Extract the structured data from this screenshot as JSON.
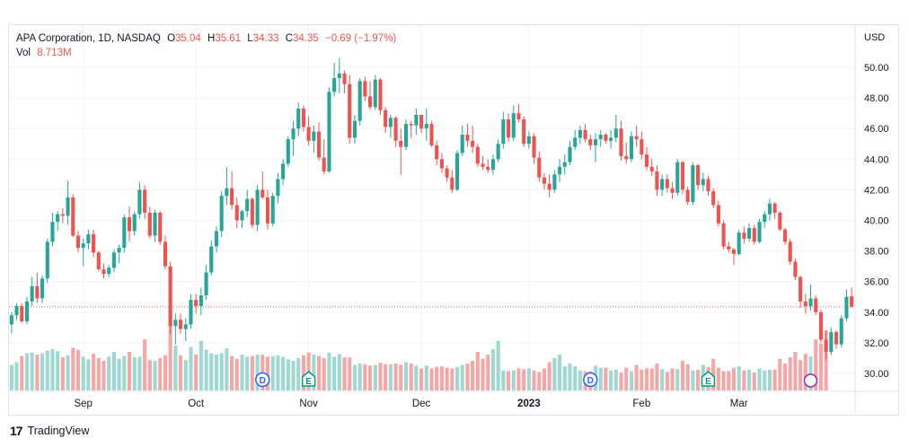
{
  "legend": {
    "symbol": "APA Corporation, 1D, NASDAQ",
    "o_label": "O",
    "o_value": "35.04",
    "h_label": "H",
    "h_value": "35.61",
    "l_label": "L",
    "l_value": "34.33",
    "c_label": "C",
    "c_value": "34.35",
    "change": "−0.69 (−1.97%)",
    "vol_label": "Vol",
    "vol_value": "8.713M"
  },
  "footer": {
    "logo_text": "17",
    "brand": "TradingView"
  },
  "colors": {
    "up": "#26a69a",
    "down": "#ef5350",
    "vol_up": "#9fd7d1",
    "vol_down": "#f3a7a6",
    "grid": "#f0f3fa",
    "last_price_line": "#ef5350"
  },
  "chart_data": {
    "type": "candlestick",
    "currency": "USD",
    "ylim": [
      29.2,
      51.6
    ],
    "y_ticks": [
      "30.00",
      "32.00",
      "34.00",
      "36.00",
      "38.00",
      "40.00",
      "42.00",
      "44.00",
      "46.00",
      "48.00",
      "50.00"
    ],
    "y_tick_values": [
      30,
      32,
      34,
      36,
      38,
      40,
      42,
      44,
      46,
      48,
      50
    ],
    "x_ticks": [
      {
        "label": "Sep",
        "index": 14,
        "bold": false
      },
      {
        "label": "Oct",
        "index": 36,
        "bold": false
      },
      {
        "label": "Nov",
        "index": 58,
        "bold": false
      },
      {
        "label": "Dec",
        "index": 80,
        "bold": false
      },
      {
        "label": "2023",
        "index": 101,
        "bold": true
      },
      {
        "label": "Feb",
        "index": 123,
        "bold": false
      },
      {
        "label": "Mar",
        "index": 142,
        "bold": false
      }
    ],
    "last_price": 34.35,
    "events": [
      {
        "type": "D",
        "index": 49
      },
      {
        "type": "E",
        "index": 58
      },
      {
        "type": "D",
        "index": 113
      },
      {
        "type": "E",
        "index": 136
      },
      {
        "type": "S",
        "index": 156
      }
    ],
    "ohlc": [
      [
        33.2,
        34.0,
        32.6,
        33.8
      ],
      [
        33.8,
        34.6,
        33.5,
        34.4
      ],
      [
        34.4,
        34.6,
        33.3,
        33.4
      ],
      [
        33.4,
        35.0,
        33.2,
        34.7
      ],
      [
        34.7,
        36.3,
        34.4,
        35.7
      ],
      [
        35.7,
        36.6,
        34.6,
        34.9
      ],
      [
        34.9,
        36.4,
        34.6,
        36.2
      ],
      [
        36.2,
        38.8,
        35.9,
        38.6
      ],
      [
        38.6,
        40.5,
        38.3,
        39.9
      ],
      [
        39.9,
        40.6,
        39.3,
        40.4
      ],
      [
        40.4,
        40.8,
        39.8,
        40.3
      ],
      [
        40.3,
        42.6,
        39.7,
        41.5
      ],
      [
        41.5,
        41.7,
        38.9,
        39.0
      ],
      [
        39.0,
        39.3,
        37.9,
        38.2
      ],
      [
        38.2,
        38.8,
        37.0,
        38.5
      ],
      [
        38.5,
        39.4,
        38.1,
        39.1
      ],
      [
        39.1,
        39.4,
        37.6,
        37.9
      ],
      [
        37.9,
        38.0,
        36.7,
        36.8
      ],
      [
        36.8,
        37.2,
        36.2,
        36.5
      ],
      [
        36.5,
        37.1,
        36.3,
        36.9
      ],
      [
        36.9,
        38.1,
        36.6,
        37.9
      ],
      [
        37.9,
        38.4,
        37.2,
        38.2
      ],
      [
        38.2,
        40.4,
        37.9,
        40.2
      ],
      [
        40.2,
        40.9,
        38.6,
        39.3
      ],
      [
        39.3,
        40.6,
        39.0,
        40.4
      ],
      [
        40.4,
        42.5,
        40.1,
        42.0
      ],
      [
        42.0,
        42.3,
        40.1,
        40.5
      ],
      [
        40.5,
        40.9,
        38.8,
        39.0
      ],
      [
        39.0,
        40.7,
        38.6,
        40.5
      ],
      [
        40.5,
        40.6,
        38.4,
        38.6
      ],
      [
        38.6,
        39.0,
        36.8,
        37.0
      ],
      [
        37.0,
        37.3,
        32.6,
        33.1
      ],
      [
        33.1,
        33.9,
        31.9,
        33.5
      ],
      [
        33.5,
        33.9,
        32.6,
        32.9
      ],
      [
        32.9,
        33.6,
        32.1,
        33.2
      ],
      [
        33.2,
        35.2,
        32.9,
        34.8
      ],
      [
        34.8,
        35.2,
        33.9,
        34.4
      ],
      [
        34.4,
        35.6,
        33.8,
        35.1
      ],
      [
        35.1,
        37.1,
        34.8,
        36.6
      ],
      [
        36.6,
        38.7,
        36.4,
        38.3
      ],
      [
        38.3,
        39.6,
        37.9,
        39.3
      ],
      [
        39.3,
        41.9,
        38.9,
        41.6
      ],
      [
        41.6,
        43.5,
        41.0,
        42.1
      ],
      [
        42.1,
        43.2,
        40.7,
        41.0
      ],
      [
        41.0,
        41.5,
        39.5,
        40.0
      ],
      [
        40.0,
        40.7,
        39.5,
        40.6
      ],
      [
        40.6,
        42.0,
        40.2,
        41.4
      ],
      [
        41.4,
        41.5,
        39.5,
        39.7
      ],
      [
        39.7,
        42.3,
        39.3,
        42.0
      ],
      [
        42.0,
        43.2,
        41.4,
        41.5
      ],
      [
        41.5,
        42.0,
        39.4,
        39.8
      ],
      [
        39.8,
        41.8,
        39.6,
        41.6
      ],
      [
        41.6,
        43.1,
        41.1,
        42.7
      ],
      [
        42.7,
        44.0,
        42.3,
        43.7
      ],
      [
        43.7,
        45.5,
        43.5,
        45.3
      ],
      [
        45.3,
        46.5,
        44.2,
        46.0
      ],
      [
        46.0,
        47.7,
        45.5,
        47.3
      ],
      [
        47.3,
        47.5,
        45.8,
        46.1
      ],
      [
        46.1,
        46.8,
        44.9,
        45.2
      ],
      [
        45.2,
        46.2,
        44.4,
        45.8
      ],
      [
        45.8,
        46.4,
        43.9,
        44.1
      ],
      [
        44.1,
        45.3,
        43.0,
        43.2
      ],
      [
        43.2,
        48.7,
        43.1,
        48.4
      ],
      [
        48.4,
        50.3,
        48.1,
        49.3
      ],
      [
        49.3,
        50.6,
        48.3,
        49.6
      ],
      [
        49.6,
        49.8,
        48.3,
        48.9
      ],
      [
        48.9,
        49.5,
        45.0,
        45.4
      ],
      [
        45.4,
        46.9,
        45.0,
        46.5
      ],
      [
        46.5,
        49.3,
        46.2,
        49.1
      ],
      [
        49.1,
        49.4,
        47.8,
        48.1
      ],
      [
        48.1,
        49.1,
        47.2,
        47.4
      ],
      [
        47.4,
        49.5,
        47.2,
        49.2
      ],
      [
        49.2,
        49.3,
        46.9,
        47.2
      ],
      [
        47.2,
        47.4,
        45.7,
        46.1
      ],
      [
        46.1,
        46.9,
        45.4,
        46.7
      ],
      [
        46.7,
        46.8,
        44.8,
        45.2
      ],
      [
        45.2,
        46.0,
        43.0,
        44.8
      ],
      [
        44.8,
        46.6,
        44.6,
        46.3
      ],
      [
        46.3,
        46.5,
        45.4,
        46.2
      ],
      [
        46.2,
        47.3,
        45.6,
        46.9
      ],
      [
        46.9,
        46.9,
        45.7,
        46.0
      ],
      [
        46.0,
        47.3,
        45.2,
        46.3
      ],
      [
        46.3,
        46.5,
        44.8,
        44.9
      ],
      [
        44.9,
        45.2,
        43.6,
        44.0
      ],
      [
        44.0,
        44.4,
        43.1,
        43.4
      ],
      [
        43.4,
        43.6,
        42.5,
        42.8
      ],
      [
        42.8,
        43.3,
        41.8,
        42.0
      ],
      [
        42.0,
        44.6,
        41.9,
        44.4
      ],
      [
        44.4,
        46.2,
        44.2,
        45.6
      ],
      [
        45.6,
        46.3,
        44.8,
        45.2
      ],
      [
        45.2,
        46.2,
        44.4,
        44.8
      ],
      [
        44.8,
        45.0,
        43.5,
        43.7
      ],
      [
        43.7,
        44.2,
        43.3,
        43.5
      ],
      [
        43.5,
        44.0,
        43.1,
        43.3
      ],
      [
        43.3,
        44.3,
        43.0,
        44.0
      ],
      [
        44.0,
        45.3,
        43.8,
        45.0
      ],
      [
        45.0,
        47.1,
        44.7,
        46.6
      ],
      [
        46.6,
        47.0,
        45.1,
        45.4
      ],
      [
        45.4,
        47.5,
        45.2,
        47.0
      ],
      [
        47.0,
        47.6,
        46.4,
        46.6
      ],
      [
        46.6,
        46.8,
        44.8,
        45.0
      ],
      [
        45.0,
        45.8,
        44.7,
        45.5
      ],
      [
        45.5,
        45.7,
        43.7,
        44.1
      ],
      [
        44.1,
        44.5,
        42.5,
        42.8
      ],
      [
        42.8,
        43.1,
        42.0,
        42.4
      ],
      [
        42.4,
        43.0,
        41.5,
        42.0
      ],
      [
        42.0,
        43.3,
        41.8,
        43.0
      ],
      [
        43.0,
        44.0,
        42.5,
        43.5
      ],
      [
        43.5,
        44.3,
        43.0,
        43.8
      ],
      [
        43.8,
        45.2,
        43.6,
        44.8
      ],
      [
        44.8,
        45.9,
        44.6,
        45.4
      ],
      [
        45.4,
        46.2,
        45.0,
        45.9
      ],
      [
        45.9,
        46.3,
        45.1,
        45.3
      ],
      [
        45.3,
        45.6,
        44.6,
        44.9
      ],
      [
        44.9,
        45.7,
        43.8,
        45.3
      ],
      [
        45.3,
        45.9,
        44.8,
        45.6
      ],
      [
        45.6,
        45.7,
        45.0,
        45.2
      ],
      [
        45.2,
        45.9,
        44.7,
        45.4
      ],
      [
        45.4,
        46.9,
        45.1,
        46.0
      ],
      [
        46.0,
        46.5,
        43.9,
        44.2
      ],
      [
        44.2,
        45.1,
        43.7,
        44.0
      ],
      [
        44.0,
        45.8,
        43.8,
        45.5
      ],
      [
        45.5,
        46.2,
        44.8,
        45.3
      ],
      [
        45.3,
        45.8,
        44.0,
        44.3
      ],
      [
        44.3,
        44.8,
        43.3,
        43.5
      ],
      [
        43.5,
        44.0,
        42.9,
        43.2
      ],
      [
        43.2,
        43.6,
        41.6,
        42.0
      ],
      [
        42.0,
        43.0,
        41.6,
        42.7
      ],
      [
        42.7,
        43.0,
        41.8,
        42.1
      ],
      [
        42.1,
        42.5,
        41.4,
        41.8
      ],
      [
        41.8,
        44.0,
        41.6,
        43.8
      ],
      [
        43.8,
        43.9,
        41.7,
        42.0
      ],
      [
        42.0,
        42.2,
        41.0,
        41.2
      ],
      [
        41.2,
        43.8,
        41.0,
        43.6
      ],
      [
        43.6,
        43.7,
        42.0,
        42.3
      ],
      [
        42.3,
        43.1,
        41.9,
        42.7
      ],
      [
        42.7,
        42.9,
        41.6,
        41.9
      ],
      [
        41.9,
        42.1,
        40.8,
        41.0
      ],
      [
        41.0,
        41.3,
        39.6,
        39.8
      ],
      [
        39.8,
        40.0,
        38.1,
        38.3
      ],
      [
        38.3,
        38.6,
        37.9,
        38.1
      ],
      [
        38.1,
        38.2,
        37.1,
        37.8
      ],
      [
        37.8,
        39.4,
        37.7,
        39.2
      ],
      [
        39.2,
        39.6,
        38.5,
        38.8
      ],
      [
        38.8,
        39.8,
        38.6,
        39.5
      ],
      [
        39.5,
        39.7,
        38.4,
        38.6
      ],
      [
        38.6,
        40.1,
        38.5,
        39.9
      ],
      [
        39.9,
        40.6,
        39.5,
        40.4
      ],
      [
        40.4,
        41.4,
        40.0,
        41.1
      ],
      [
        41.1,
        41.2,
        40.1,
        40.5
      ],
      [
        40.5,
        40.6,
        39.3,
        39.4
      ],
      [
        39.4,
        39.5,
        38.4,
        38.6
      ],
      [
        38.6,
        38.8,
        37.1,
        37.3
      ],
      [
        37.3,
        37.5,
        36.1,
        36.3
      ],
      [
        36.3,
        36.4,
        34.3,
        34.7
      ],
      [
        34.7,
        35.2,
        33.9,
        34.4
      ],
      [
        34.4,
        35.8,
        34.1,
        34.9
      ],
      [
        34.9,
        35.1,
        33.8,
        34.0
      ],
      [
        34.0,
        34.2,
        32.0,
        32.2
      ],
      [
        32.2,
        32.8,
        30.9,
        31.4
      ],
      [
        31.4,
        33.0,
        31.2,
        32.7
      ],
      [
        32.7,
        32.8,
        31.6,
        31.9
      ],
      [
        31.9,
        33.8,
        31.7,
        33.6
      ],
      [
        33.6,
        35.5,
        33.4,
        35.0
      ],
      [
        35.04,
        35.61,
        34.33,
        34.35
      ]
    ],
    "volume": [
      3.7,
      4.1,
      5.0,
      5.4,
      5.5,
      5.2,
      5.4,
      5.8,
      6.0,
      5.7,
      4.8,
      5.1,
      6.2,
      5.9,
      4.9,
      4.5,
      5.3,
      4.7,
      4.3,
      4.9,
      5.6,
      4.6,
      5.0,
      5.6,
      4.8,
      4.9,
      7.4,
      4.4,
      4.3,
      4.7,
      5.1,
      9.9,
      6.5,
      5.1,
      4.4,
      6.3,
      5.2,
      7.2,
      5.9,
      5.4,
      5.2,
      5.4,
      6.1,
      5.0,
      4.6,
      5.2,
      4.9,
      5.0,
      5.2,
      5.2,
      4.9,
      5.0,
      5.1,
      4.9,
      4.5,
      4.3,
      4.7,
      5.1,
      5.5,
      5.2,
      5.0,
      4.7,
      5.5,
      4.9,
      5.3,
      4.8,
      4.8,
      3.7,
      3.9,
      3.8,
      3.6,
      3.7,
      4.0,
      3.8,
      3.8,
      3.9,
      3.7,
      4.1,
      3.9,
      3.6,
      3.2,
      3.6,
      3.2,
      3.4,
      3.5,
      3.3,
      3.2,
      3.4,
      3.7,
      3.9,
      4.3,
      5.6,
      4.6,
      5.2,
      6.0,
      7.2,
      2.9,
      2.8,
      2.9,
      3.2,
      3.1,
      3.2,
      2.9,
      2.7,
      3.2,
      4.1,
      4.7,
      5.2,
      3.5,
      3.9,
      3.5,
      2.9,
      2.8,
      2.8,
      3.6,
      3.3,
      3.3,
      2.9,
      3.0,
      2.6,
      3.3,
      2.8,
      3.7,
      3.0,
      3.2,
      3.2,
      3.9,
      3.1,
      2.7,
      3.2,
      3.1,
      4.3,
      3.8,
      2.9,
      3.0,
      3.7,
      3.4,
      4.6,
      3.3,
      2.8,
      2.8,
      3.3,
      3.5,
      2.9,
      3.0,
      2.6,
      3.2,
      2.9,
      3.0,
      3.0,
      4.6,
      3.9,
      4.8,
      5.6,
      4.4,
      5.3,
      4.9,
      7.4,
      6.8,
      8.7
    ]
  }
}
